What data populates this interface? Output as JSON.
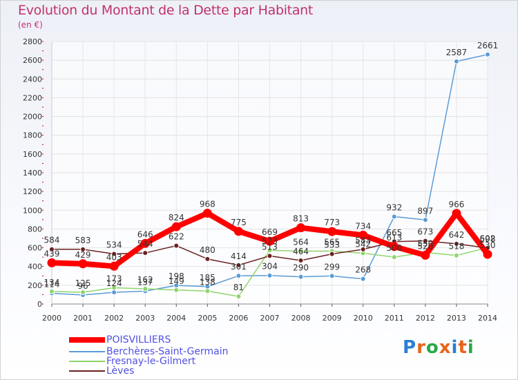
{
  "chart_data": {
    "type": "line",
    "title": "Evolution du Montant de la Dette par Habitant",
    "subtitle": "(en €)",
    "x": [
      "2000",
      "2001",
      "2002",
      "2003",
      "2004",
      "2005",
      "2006",
      "2007",
      "2008",
      "2009",
      "2010",
      "2011",
      "2012",
      "2013",
      "2014"
    ],
    "ylim": [
      0,
      2800
    ],
    "yticks": [
      "0",
      "200",
      "400",
      "600",
      "800",
      "1000",
      "1200",
      "1400",
      "1600",
      "1800",
      "2000",
      "2200",
      "2400",
      "2600",
      "2800"
    ],
    "series": [
      {
        "name": "POISVILLIERS",
        "color": "#ff0000",
        "values": [
          439,
          429,
          403,
          646,
          824,
          968,
          775,
          669,
          813,
          773,
          734,
          613,
          520,
          966,
          530
        ]
      },
      {
        "name": "Berchères-Saint-Germain",
        "color": "#5b9bd5",
        "values": [
          114,
          96,
          124,
          137,
          198,
          185,
          301,
          304,
          290,
          299,
          268,
          932,
          897,
          2587,
          2661
        ]
      },
      {
        "name": "Fresnay-le-Gilmert",
        "color": "#8fd46a",
        "values": [
          134,
          125,
          173,
          162,
          149,
          138,
          81,
          573,
          564,
          565,
          542,
          500,
          550,
          518,
          602
        ]
      },
      {
        "name": "Lèves",
        "color": "#6b2020",
        "values": [
          584,
          583,
          534,
          544,
          622,
          480,
          414,
          513,
          464,
          533,
          583,
          665,
          673,
          642,
          598
        ]
      }
    ]
  },
  "logo": {
    "text": "Proxiti"
  }
}
